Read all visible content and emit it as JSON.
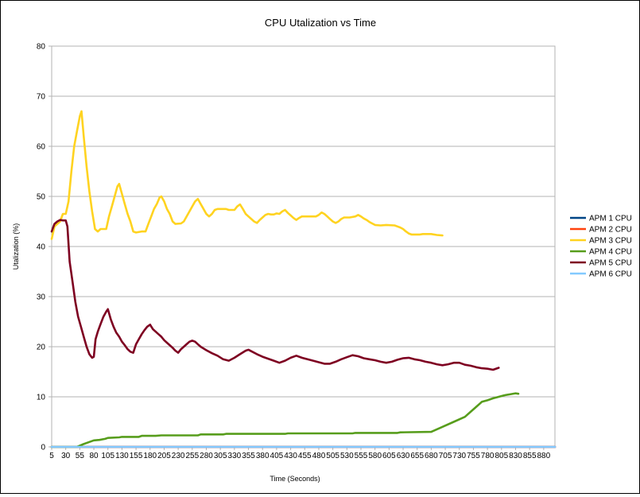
{
  "chart_data": {
    "type": "line",
    "title": "CPU Utalization vs Time",
    "xlabel": "Time (Seconds)",
    "ylabel": "Utalization (%)",
    "ylim": [
      0,
      80
    ],
    "yticks": [
      0,
      10,
      20,
      30,
      40,
      50,
      60,
      70,
      80
    ],
    "xlim": [
      5,
      900
    ],
    "xticks": [
      5,
      30,
      55,
      80,
      105,
      130,
      155,
      180,
      205,
      230,
      255,
      280,
      305,
      330,
      355,
      380,
      405,
      430,
      455,
      480,
      505,
      530,
      555,
      580,
      605,
      630,
      655,
      680,
      705,
      730,
      755,
      780,
      805,
      830,
      855,
      880
    ],
    "grid": "horizontal",
    "legend_position": "right",
    "series": [
      {
        "name": "APM 1 CPU",
        "color": "#004586",
        "points": [
          [
            5,
            0
          ],
          [
            900,
            0
          ]
        ]
      },
      {
        "name": "APM 2 CPU",
        "color": "#ff420e",
        "points": [
          [
            5,
            0
          ],
          [
            900,
            0
          ]
        ]
      },
      {
        "name": "APM 3 CPU",
        "color": "#ffd320",
        "points": [
          [
            5,
            41.5
          ],
          [
            10,
            44
          ],
          [
            15,
            44.5
          ],
          [
            20,
            45
          ],
          [
            25,
            46.5
          ],
          [
            30,
            46.5
          ],
          [
            35,
            49
          ],
          [
            40,
            55
          ],
          [
            45,
            60
          ],
          [
            50,
            63
          ],
          [
            55,
            66
          ],
          [
            58,
            67
          ],
          [
            62,
            62
          ],
          [
            67,
            56
          ],
          [
            72,
            51
          ],
          [
            77,
            47
          ],
          [
            82,
            43.5
          ],
          [
            87,
            43
          ],
          [
            92,
            43.5
          ],
          [
            102,
            43.5
          ],
          [
            107,
            46
          ],
          [
            112,
            48
          ],
          [
            117,
            50
          ],
          [
            122,
            52
          ],
          [
            125,
            52.5
          ],
          [
            130,
            50.5
          ],
          [
            135,
            48.5
          ],
          [
            140,
            46.5
          ],
          [
            145,
            45
          ],
          [
            150,
            43
          ],
          [
            155,
            42.8
          ],
          [
            165,
            43
          ],
          [
            172,
            43
          ],
          [
            177,
            44.5
          ],
          [
            182,
            46
          ],
          [
            187,
            47.5
          ],
          [
            192,
            48.5
          ],
          [
            197,
            49.8
          ],
          [
            200,
            50
          ],
          [
            205,
            49
          ],
          [
            210,
            47.5
          ],
          [
            215,
            46.5
          ],
          [
            220,
            45
          ],
          [
            225,
            44.5
          ],
          [
            235,
            44.6
          ],
          [
            240,
            45
          ],
          [
            245,
            46
          ],
          [
            250,
            47
          ],
          [
            255,
            48
          ],
          [
            260,
            49
          ],
          [
            265,
            49.5
          ],
          [
            270,
            48.5
          ],
          [
            275,
            47.5
          ],
          [
            280,
            46.5
          ],
          [
            285,
            46
          ],
          [
            290,
            46.5
          ],
          [
            295,
            47.3
          ],
          [
            300,
            47.5
          ],
          [
            315,
            47.5
          ],
          [
            320,
            47.3
          ],
          [
            330,
            47.3
          ],
          [
            335,
            48
          ],
          [
            340,
            48.4
          ],
          [
            345,
            47.5
          ],
          [
            350,
            46.5
          ],
          [
            355,
            46
          ],
          [
            360,
            45.5
          ],
          [
            365,
            45
          ],
          [
            370,
            44.7
          ],
          [
            375,
            45.3
          ],
          [
            380,
            45.8
          ],
          [
            385,
            46.3
          ],
          [
            390,
            46.5
          ],
          [
            395,
            46.4
          ],
          [
            400,
            46.4
          ],
          [
            405,
            46.6
          ],
          [
            410,
            46.5
          ],
          [
            415,
            47
          ],
          [
            420,
            47.3
          ],
          [
            425,
            46.7
          ],
          [
            430,
            46.2
          ],
          [
            435,
            45.7
          ],
          [
            440,
            45.3
          ],
          [
            445,
            45.7
          ],
          [
            450,
            46
          ],
          [
            460,
            46
          ],
          [
            475,
            46
          ],
          [
            480,
            46.3
          ],
          [
            485,
            46.8
          ],
          [
            490,
            46.5
          ],
          [
            495,
            46
          ],
          [
            500,
            45.5
          ],
          [
            505,
            45
          ],
          [
            510,
            44.7
          ],
          [
            515,
            45
          ],
          [
            520,
            45.5
          ],
          [
            525,
            45.8
          ],
          [
            535,
            45.8
          ],
          [
            545,
            46
          ],
          [
            550,
            46.3
          ],
          [
            555,
            46
          ],
          [
            560,
            45.6
          ],
          [
            565,
            45.3
          ],
          [
            570,
            44.9
          ],
          [
            575,
            44.6
          ],
          [
            580,
            44.3
          ],
          [
            590,
            44.2
          ],
          [
            600,
            44.3
          ],
          [
            615,
            44.2
          ],
          [
            620,
            44
          ],
          [
            625,
            43.8
          ],
          [
            630,
            43.5
          ],
          [
            635,
            43
          ],
          [
            640,
            42.6
          ],
          [
            645,
            42.4
          ],
          [
            660,
            42.4
          ],
          [
            665,
            42.5
          ],
          [
            680,
            42.5
          ],
          [
            690,
            42.3
          ],
          [
            700,
            42.2
          ]
        ]
      },
      {
        "name": "APM 4 CPU",
        "color": "#579d1c",
        "points": [
          [
            5,
            0
          ],
          [
            50,
            0
          ],
          [
            60,
            0.5
          ],
          [
            70,
            0.9
          ],
          [
            80,
            1.3
          ],
          [
            90,
            1.4
          ],
          [
            100,
            1.6
          ],
          [
            105,
            1.8
          ],
          [
            125,
            1.9
          ],
          [
            130,
            2
          ],
          [
            160,
            2
          ],
          [
            165,
            2.2
          ],
          [
            190,
            2.2
          ],
          [
            200,
            2.3
          ],
          [
            265,
            2.3
          ],
          [
            270,
            2.5
          ],
          [
            310,
            2.5
          ],
          [
            315,
            2.6
          ],
          [
            420,
            2.6
          ],
          [
            425,
            2.7
          ],
          [
            540,
            2.7
          ],
          [
            545,
            2.8
          ],
          [
            620,
            2.8
          ],
          [
            625,
            2.9
          ],
          [
            680,
            3
          ],
          [
            700,
            4
          ],
          [
            720,
            5
          ],
          [
            740,
            6
          ],
          [
            750,
            7
          ],
          [
            760,
            8
          ],
          [
            770,
            9
          ],
          [
            780,
            9.3
          ],
          [
            790,
            9.7
          ],
          [
            800,
            10
          ],
          [
            810,
            10.3
          ],
          [
            820,
            10.5
          ],
          [
            830,
            10.7
          ],
          [
            835,
            10.6
          ]
        ]
      },
      {
        "name": "APM 5 CPU",
        "color": "#7e0021",
        "points": [
          [
            5,
            43
          ],
          [
            10,
            44.5
          ],
          [
            15,
            45
          ],
          [
            20,
            45.3
          ],
          [
            25,
            45.2
          ],
          [
            30,
            45.2
          ],
          [
            33,
            44
          ],
          [
            37,
            37
          ],
          [
            42,
            33
          ],
          [
            47,
            29
          ],
          [
            52,
            26
          ],
          [
            57,
            24
          ],
          [
            62,
            22
          ],
          [
            67,
            20
          ],
          [
            72,
            18.5
          ],
          [
            77,
            17.8
          ],
          [
            80,
            18
          ],
          [
            83,
            21.5
          ],
          [
            87,
            23
          ],
          [
            92,
            24.5
          ],
          [
            97,
            26
          ],
          [
            102,
            27
          ],
          [
            105,
            27.5
          ],
          [
            110,
            25.5
          ],
          [
            115,
            24
          ],
          [
            120,
            22.8
          ],
          [
            125,
            22
          ],
          [
            130,
            21
          ],
          [
            135,
            20.3
          ],
          [
            140,
            19.5
          ],
          [
            145,
            19
          ],
          [
            150,
            18.8
          ],
          [
            155,
            20.5
          ],
          [
            160,
            21.5
          ],
          [
            165,
            22.5
          ],
          [
            170,
            23.3
          ],
          [
            175,
            24
          ],
          [
            180,
            24.4
          ],
          [
            185,
            23.5
          ],
          [
            190,
            23
          ],
          [
            195,
            22.5
          ],
          [
            200,
            22
          ],
          [
            205,
            21.3
          ],
          [
            210,
            20.8
          ],
          [
            215,
            20.3
          ],
          [
            220,
            19.8
          ],
          [
            225,
            19.2
          ],
          [
            230,
            18.8
          ],
          [
            235,
            19.5
          ],
          [
            240,
            20
          ],
          [
            245,
            20.5
          ],
          [
            250,
            21
          ],
          [
            255,
            21.2
          ],
          [
            260,
            21
          ],
          [
            265,
            20.5
          ],
          [
            270,
            20
          ],
          [
            280,
            19.3
          ],
          [
            290,
            18.7
          ],
          [
            300,
            18.2
          ],
          [
            310,
            17.5
          ],
          [
            320,
            17.2
          ],
          [
            330,
            17.8
          ],
          [
            340,
            18.5
          ],
          [
            350,
            19.2
          ],
          [
            355,
            19.4
          ],
          [
            360,
            19.1
          ],
          [
            370,
            18.5
          ],
          [
            380,
            18
          ],
          [
            390,
            17.6
          ],
          [
            400,
            17.2
          ],
          [
            410,
            16.8
          ],
          [
            420,
            17.2
          ],
          [
            430,
            17.8
          ],
          [
            440,
            18.2
          ],
          [
            450,
            17.8
          ],
          [
            460,
            17.5
          ],
          [
            470,
            17.2
          ],
          [
            480,
            16.9
          ],
          [
            490,
            16.6
          ],
          [
            500,
            16.6
          ],
          [
            510,
            17
          ],
          [
            520,
            17.5
          ],
          [
            530,
            17.9
          ],
          [
            540,
            18.3
          ],
          [
            550,
            18.1
          ],
          [
            560,
            17.7
          ],
          [
            570,
            17.5
          ],
          [
            580,
            17.3
          ],
          [
            590,
            17
          ],
          [
            600,
            16.8
          ],
          [
            610,
            17
          ],
          [
            620,
            17.4
          ],
          [
            630,
            17.7
          ],
          [
            640,
            17.8
          ],
          [
            650,
            17.5
          ],
          [
            660,
            17.3
          ],
          [
            670,
            17
          ],
          [
            680,
            16.8
          ],
          [
            690,
            16.5
          ],
          [
            700,
            16.3
          ],
          [
            710,
            16.5
          ],
          [
            720,
            16.8
          ],
          [
            730,
            16.8
          ],
          [
            740,
            16.4
          ],
          [
            750,
            16.2
          ],
          [
            760,
            15.9
          ],
          [
            770,
            15.7
          ],
          [
            780,
            15.6
          ],
          [
            790,
            15.4
          ],
          [
            800,
            15.8
          ]
        ]
      },
      {
        "name": "APM 6 CPU",
        "color": "#83caff",
        "points": [
          [
            5,
            0
          ],
          [
            900,
            0
          ]
        ]
      }
    ]
  }
}
